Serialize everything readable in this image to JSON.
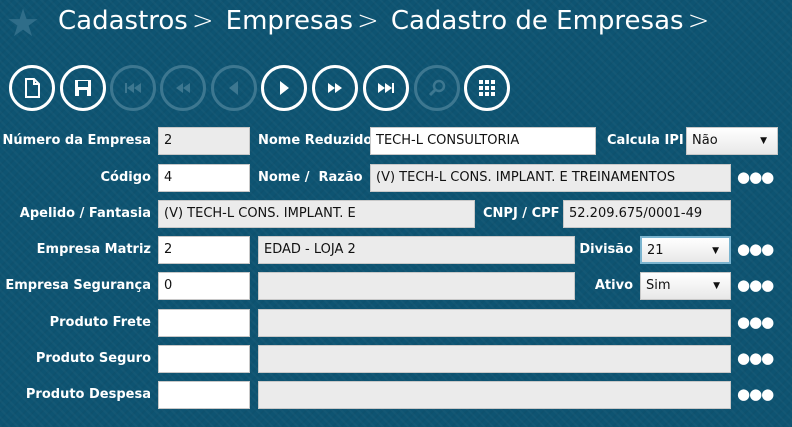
{
  "breadcrumb": [
    "Cadastros",
    "Empresas",
    "Cadastro de Empresas"
  ],
  "toolbar": [
    {
      "name": "new-document",
      "enabled": true
    },
    {
      "name": "save",
      "enabled": true
    },
    {
      "name": "first",
      "enabled": false
    },
    {
      "name": "rewind",
      "enabled": false
    },
    {
      "name": "previous",
      "enabled": false
    },
    {
      "name": "next",
      "enabled": true
    },
    {
      "name": "fast-forward",
      "enabled": true
    },
    {
      "name": "last",
      "enabled": true
    },
    {
      "name": "search",
      "enabled": false
    },
    {
      "name": "grid",
      "enabled": true
    }
  ],
  "form": {
    "numero_empresa": {
      "label": "Número da Empresa",
      "value": "2"
    },
    "nome_reduzido": {
      "label": "Nome Reduzido",
      "value": "TECH-L CONSULTORIA"
    },
    "calcula_ipi": {
      "label": "Calcula IPI",
      "value": "Não"
    },
    "codigo": {
      "label": "Código",
      "value": "4"
    },
    "nome_razao": {
      "label": "Nome /  Razão",
      "value": "(V) TECH-L CONS. IMPLANT. E TREINAMENTOS"
    },
    "apelido": {
      "label": "Apelido / Fantasia",
      "value": "(V) TECH-L CONS. IMPLANT. E"
    },
    "cnpj": {
      "label": "CNPJ / CPF",
      "value": "52.209.675/0001-49"
    },
    "empresa_matriz": {
      "label": "Empresa Matriz",
      "value": "2",
      "desc": "EDAD - LOJA 2"
    },
    "divisao": {
      "label": "Divisão",
      "value": "21"
    },
    "empresa_seguranca": {
      "label": "Empresa Segurança",
      "value": "0",
      "desc": ""
    },
    "ativo": {
      "label": "Ativo",
      "value": "Sim"
    },
    "produto_frete": {
      "label": "Produto Frete",
      "value": "",
      "desc": ""
    },
    "produto_seguro": {
      "label": "Produto Seguro",
      "value": "",
      "desc": ""
    },
    "produto_despesa": {
      "label": "Produto Despesa",
      "value": "",
      "desc": ""
    },
    "more_label": "●●●",
    "dropdown_arrow": "▼"
  }
}
